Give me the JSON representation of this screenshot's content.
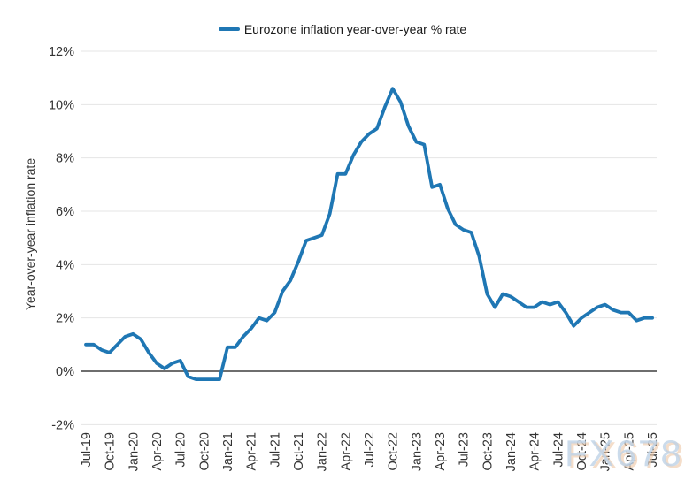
{
  "legend": {
    "label": "Eurozone inflation year-over-year % rate"
  },
  "y_axis": {
    "title": "Year-over-year inflation rate"
  },
  "watermark": {
    "text": "FX678"
  },
  "chart_data": {
    "type": "line",
    "title": "",
    "legend_label": "Eurozone inflation year-over-year % rate",
    "legend_position": "top-center",
    "grid": true,
    "ylim": [
      -2,
      12
    ],
    "line_color": "#1f77b4",
    "grid_color": "#e4e4e4",
    "zero_line_color": "#595959",
    "text_color": "#333333",
    "y_ticks": [
      {
        "label": "12%",
        "value": 12
      },
      {
        "label": "10%",
        "value": 10
      },
      {
        "label": "8%",
        "value": 8
      },
      {
        "label": "6%",
        "value": 6
      },
      {
        "label": "4%",
        "value": 4
      },
      {
        "label": "2%",
        "value": 2
      },
      {
        "label": "0%",
        "value": 0
      },
      {
        "label": "-2%",
        "value": -2
      }
    ],
    "x_tick_labels": [
      "Jul-19",
      "Oct-19",
      "Jan-20",
      "Apr-20",
      "Jul-20",
      "Oct-20",
      "Jan-21",
      "Apr-21",
      "Jul-21",
      "Oct-21",
      "Jan-22",
      "Apr-22",
      "Jul-22",
      "Oct-22",
      "Jan-23",
      "Apr-23",
      "Jul-23",
      "Oct-23",
      "Jan-24",
      "Apr-24",
      "Jul-24",
      "Oct-24",
      "Jan-25",
      "Apr-25",
      "Jul-25"
    ],
    "x": [
      "Jul-19",
      "Aug-19",
      "Sep-19",
      "Oct-19",
      "Nov-19",
      "Dec-19",
      "Jan-20",
      "Feb-20",
      "Mar-20",
      "Apr-20",
      "May-20",
      "Jun-20",
      "Jul-20",
      "Aug-20",
      "Sep-20",
      "Oct-20",
      "Nov-20",
      "Dec-20",
      "Jan-21",
      "Feb-21",
      "Mar-21",
      "Apr-21",
      "May-21",
      "Jun-21",
      "Jul-21",
      "Aug-21",
      "Sep-21",
      "Oct-21",
      "Nov-21",
      "Dec-21",
      "Jan-22",
      "Feb-22",
      "Mar-22",
      "Apr-22",
      "May-22",
      "Jun-22",
      "Jul-22",
      "Aug-22",
      "Sep-22",
      "Oct-22",
      "Nov-22",
      "Dec-22",
      "Jan-23",
      "Feb-23",
      "Mar-23",
      "Apr-23",
      "May-23",
      "Jun-23",
      "Jul-23",
      "Aug-23",
      "Sep-23",
      "Oct-23",
      "Nov-23",
      "Dec-23",
      "Jan-24",
      "Feb-24",
      "Mar-24",
      "Apr-24",
      "May-24",
      "Jun-24",
      "Jul-24",
      "Aug-24",
      "Sep-24",
      "Oct-24",
      "Nov-24",
      "Dec-24",
      "Jan-25",
      "Feb-25",
      "Mar-25",
      "Apr-25",
      "May-25",
      "Jun-25",
      "Jul-25"
    ],
    "values": [
      1.0,
      1.0,
      0.8,
      0.7,
      1.0,
      1.3,
      1.4,
      1.2,
      0.7,
      0.3,
      0.1,
      0.3,
      0.4,
      -0.2,
      -0.3,
      -0.3,
      -0.3,
      -0.3,
      0.9,
      0.9,
      1.3,
      1.6,
      2.0,
      1.9,
      2.2,
      3.0,
      3.4,
      4.1,
      4.9,
      5.0,
      5.1,
      5.9,
      7.4,
      7.4,
      8.1,
      8.6,
      8.9,
      9.1,
      9.9,
      10.6,
      10.1,
      9.2,
      8.6,
      8.5,
      6.9,
      7.0,
      6.1,
      5.5,
      5.3,
      5.2,
      4.3,
      2.9,
      2.4,
      2.9,
      2.8,
      2.6,
      2.4,
      2.4,
      2.6,
      2.5,
      2.6,
      2.2,
      1.7,
      2.0,
      2.2,
      2.4,
      2.5,
      2.3,
      2.2,
      2.2,
      1.9,
      2.0,
      2.0
    ]
  }
}
